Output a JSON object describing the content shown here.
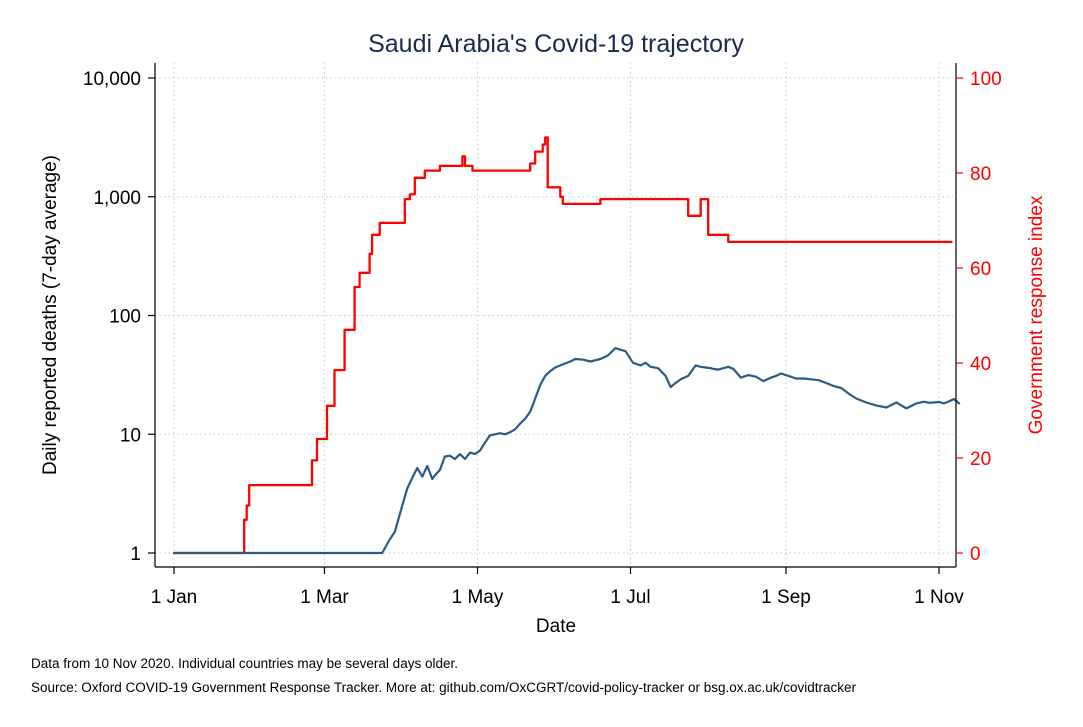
{
  "chart_data": {
    "type": "line",
    "title": "Saudi Arabia's Covid-19 trajectory",
    "xlabel": "Date",
    "ylabel_left": "Daily reported deaths (7-day average)",
    "ylabel_right": "Government response index",
    "x_ticks": [
      "1 Jan",
      "1 Mar",
      "1 May",
      "1 Jul",
      "1 Sep",
      "1 Nov"
    ],
    "x_tick_days": [
      0,
      60,
      121,
      182,
      244,
      305
    ],
    "xlim_days": [
      0,
      315
    ],
    "left_axis": {
      "scale": "log",
      "ylim": [
        1,
        10000
      ],
      "ticks": [
        1,
        10,
        100,
        1000,
        10000
      ],
      "tick_labels": [
        "1",
        "10",
        "100",
        "1,000",
        "10,000"
      ]
    },
    "right_axis": {
      "scale": "linear",
      "ylim": [
        0,
        100
      ],
      "ticks": [
        0,
        20,
        40,
        60,
        80,
        100
      ],
      "tick_labels": [
        "0",
        "20",
        "40",
        "60",
        "80",
        "100"
      ]
    },
    "grid": true,
    "series": [
      {
        "axis": "left",
        "color": "#2b5b84",
        "x": [
          0,
          83,
          86,
          88,
          90,
          91,
          93,
          95,
          97,
          99,
          101,
          103,
          104,
          106,
          108,
          110,
          112,
          114,
          116,
          118,
          120,
          122,
          124,
          126,
          128,
          130,
          132,
          134,
          136,
          138,
          140,
          142,
          144,
          146,
          148,
          150,
          152,
          154,
          156,
          158,
          160,
          163,
          166,
          170,
          173,
          176,
          180,
          183,
          186,
          188,
          190,
          193,
          196,
          198,
          200,
          202,
          205,
          208,
          210,
          212,
          214,
          215,
          217,
          219,
          221,
          223,
          226,
          229,
          232,
          235,
          238,
          240,
          242,
          245,
          248,
          251,
          254,
          257,
          260,
          263,
          266,
          269,
          272,
          276,
          280,
          284,
          288,
          292,
          296,
          299,
          301,
          303,
          305,
          307,
          309,
          311,
          313
        ],
        "y": [
          1,
          1,
          1.3,
          1.5,
          2.1,
          2.5,
          3.5,
          4.3,
          5.2,
          4.4,
          5.4,
          4.2,
          4.5,
          5,
          6.5,
          6.6,
          6.2,
          6.8,
          6.2,
          7,
          6.8,
          7.3,
          8.5,
          9.8,
          10,
          10.2,
          10,
          10.4,
          11,
          12.3,
          13.5,
          15.5,
          20,
          26,
          31,
          34,
          36.5,
          38,
          39.5,
          41,
          43,
          42.5,
          41,
          43,
          46,
          53,
          50,
          40,
          38,
          40,
          37,
          36,
          31,
          25,
          27,
          29,
          31,
          38,
          37,
          36.5,
          36,
          35.5,
          35,
          36,
          37,
          35.5,
          30,
          31.5,
          30.5,
          28,
          30,
          31,
          32.5,
          31,
          29.5,
          29.5,
          29,
          28.5,
          27,
          25.5,
          24.5,
          22,
          20,
          18.5,
          17.5,
          16.8,
          18.5,
          16.5,
          18.2,
          18.8,
          18.4,
          18.5,
          18.7,
          18.2,
          18.9,
          19.8,
          18.2
        ]
      },
      {
        "axis": "right",
        "color": "#ff0000",
        "x": [
          0,
          28,
          28,
          29,
          29,
          30,
          30,
          32,
          32,
          43,
          43,
          55,
          55,
          57,
          57,
          61,
          61,
          64,
          64,
          68,
          68,
          72,
          72,
          74,
          74,
          78,
          78,
          79,
          79,
          82,
          82,
          84,
          84,
          92,
          92,
          94,
          94,
          96,
          96,
          100,
          100,
          106,
          106,
          115,
          115,
          116,
          116,
          119,
          119,
          125,
          125,
          142,
          142,
          144,
          144,
          147,
          147,
          148,
          148,
          149,
          149,
          149.5,
          149.5,
          154,
          154,
          155,
          155,
          157,
          157,
          161,
          161,
          170,
          170,
          172,
          172,
          205,
          205,
          210,
          210,
          213,
          213,
          220,
          220,
          221,
          221,
          256,
          256,
          310
        ],
        "y": [
          0,
          0,
          7,
          7,
          10,
          10,
          14.3,
          14.3,
          14.3,
          14.3,
          14.3,
          14.3,
          19.5,
          19.5,
          24,
          24,
          31,
          31,
          38.5,
          38.5,
          47,
          47,
          56,
          56,
          59,
          59,
          63,
          63,
          67,
          67,
          69.5,
          69.5,
          69.5,
          69.5,
          74.5,
          74.5,
          75.5,
          75.5,
          79,
          79,
          80.5,
          80.5,
          81.5,
          81.5,
          83.5,
          83.5,
          81.5,
          81.5,
          80.5,
          80.5,
          80.5,
          80.5,
          82,
          82,
          84.5,
          84.5,
          86,
          86,
          87.5,
          87.5,
          77,
          77,
          77,
          77,
          75,
          75,
          73.5,
          73.5,
          73.5,
          73.5,
          73.5,
          73.5,
          74.5,
          74.5,
          74.5,
          74.5,
          71,
          71,
          74.5,
          74.5,
          67,
          67,
          67,
          67,
          65.5,
          65.5,
          65.5,
          65.5
        ]
      }
    ]
  },
  "notes": {
    "data_note": "Data from 10 Nov 2020. Individual countries may be several days older.",
    "source_note": "Source: Oxford COVID-19 Government Response Tracker. More at: github.com/OxCGRT/covid-policy-tracker or bsg.ox.ac.uk/covidtracker"
  }
}
